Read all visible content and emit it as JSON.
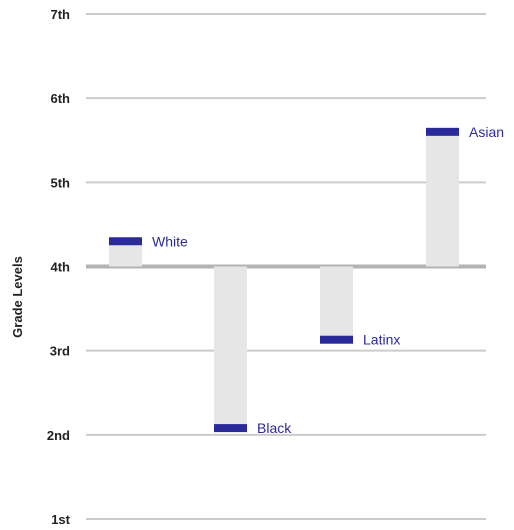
{
  "chart_data": {
    "type": "bar",
    "ylabel": "Grade Levels",
    "ylim": [
      1,
      7
    ],
    "baseline": 4,
    "y_ticks": [
      {
        "value": 7,
        "label": "7th"
      },
      {
        "value": 6,
        "label": "6th"
      },
      {
        "value": 5,
        "label": "5th"
      },
      {
        "value": 4,
        "label": "4th"
      },
      {
        "value": 3,
        "label": "3rd"
      },
      {
        "value": 2,
        "label": "2nd"
      },
      {
        "value": 1,
        "label": "1st"
      }
    ],
    "categories": [
      "White",
      "Black",
      "Latinx",
      "Asian"
    ],
    "values": [
      4.3,
      2.08,
      3.13,
      5.6
    ],
    "grid": true,
    "colors": {
      "bar_fill": "#e6e6e6",
      "marker": "#2b2a9b",
      "label": "#2b2a9b",
      "grid": "#cccccc",
      "baseline": "#b3b3b3",
      "text": "#222222"
    }
  }
}
